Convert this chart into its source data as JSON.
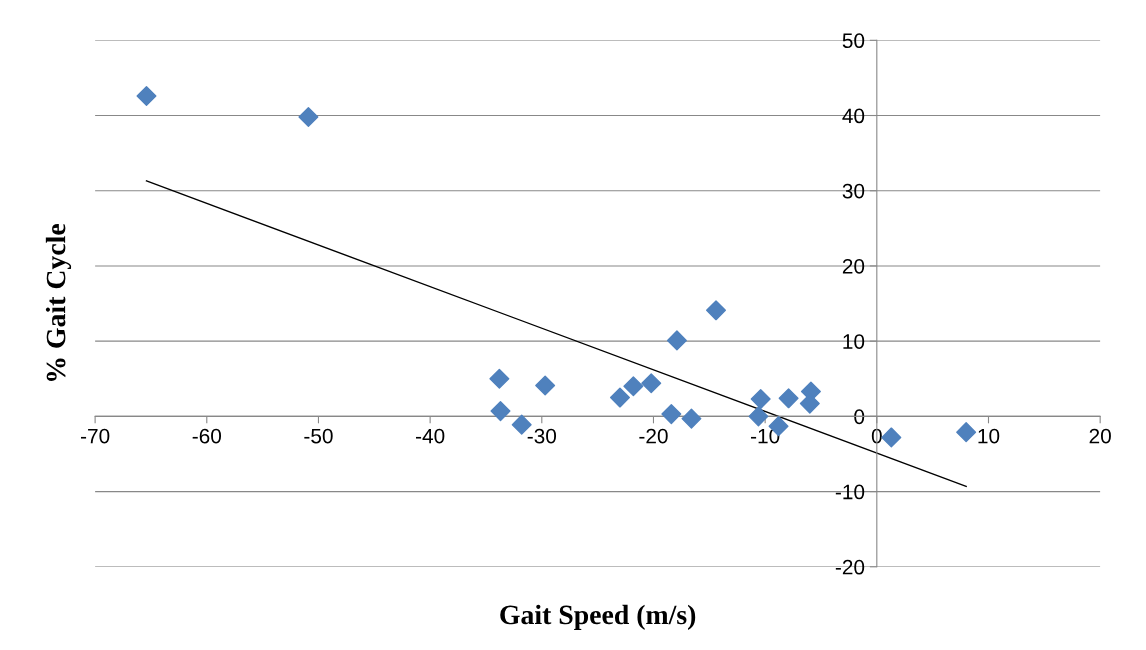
{
  "chart_data": {
    "type": "scatter",
    "xlabel": "Gait Speed (m/s)",
    "ylabel": "% Gait Cycle",
    "xlim": [
      -70,
      20
    ],
    "xticks": [
      -70,
      -60,
      -50,
      -40,
      -30,
      -20,
      -10,
      0,
      10,
      20
    ],
    "ylim": [
      -20,
      50
    ],
    "yticks": [
      -20,
      -10,
      0,
      10,
      20,
      30,
      40,
      50
    ],
    "grid": "y",
    "series": [
      {
        "color": "#4f81bd",
        "marker": "diamond",
        "x": [
          -65.4,
          -50.9,
          -33.8,
          -33.7,
          -31.8,
          -29.7,
          -23.0,
          -21.8,
          -20.2,
          -18.4,
          -17.9,
          -16.6,
          -14.4,
          -10.6,
          -10.4,
          -8.8,
          -7.9,
          -5.9,
          -6.0,
          1.3,
          8.0
        ],
        "values": [
          42.6,
          39.8,
          5.0,
          0.7,
          -1.1,
          4.1,
          2.5,
          4.0,
          4.4,
          0.3,
          10.1,
          -0.3,
          14.1,
          0.0,
          2.3,
          -1.3,
          2.4,
          3.3,
          1.7,
          -2.8,
          -2.1
        ]
      },
      {
        "type": "line",
        "color": "#000000",
        "marker": "none",
        "line_style": "solid",
        "x": [
          -65.4,
          8.0
        ],
        "values": [
          31.3,
          -9.3
        ]
      }
    ]
  }
}
